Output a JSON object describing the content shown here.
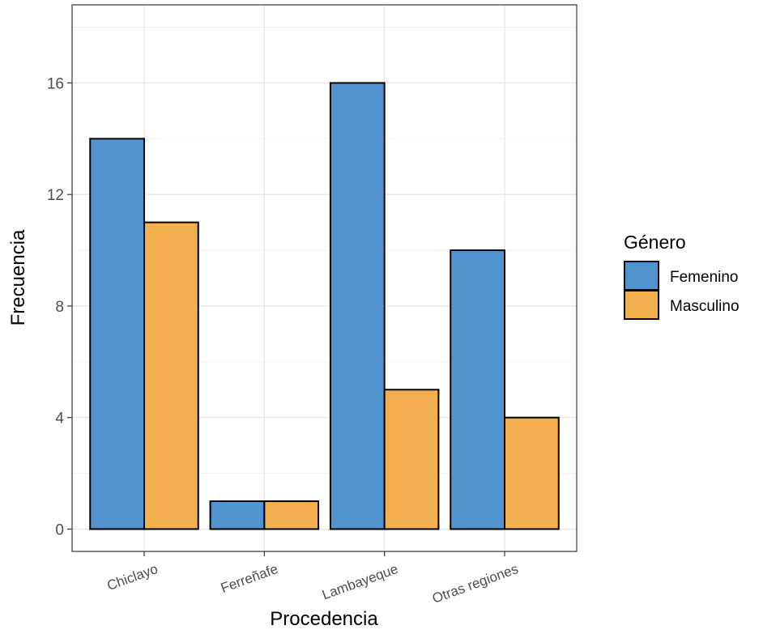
{
  "chart_data": {
    "type": "bar",
    "categories": [
      "Chiclayo",
      "Ferreñafe",
      "Lambayeque",
      "Otras regiones"
    ],
    "series": [
      {
        "name": "Femenino",
        "values": [
          14,
          1,
          16,
          10
        ]
      },
      {
        "name": "Masculino",
        "values": [
          11,
          1,
          5,
          4
        ]
      }
    ],
    "xlabel": "Procedencia",
    "ylabel": "Frecuencia",
    "y_ticks": [
      0,
      4,
      8,
      12,
      16
    ],
    "ylim": [
      -0.8,
      18.8
    ],
    "grid": true,
    "legend": {
      "title": "Género",
      "position": "right"
    },
    "colors": {
      "Femenino": "#5393D0",
      "Masculino": "#F3AE4E"
    }
  }
}
